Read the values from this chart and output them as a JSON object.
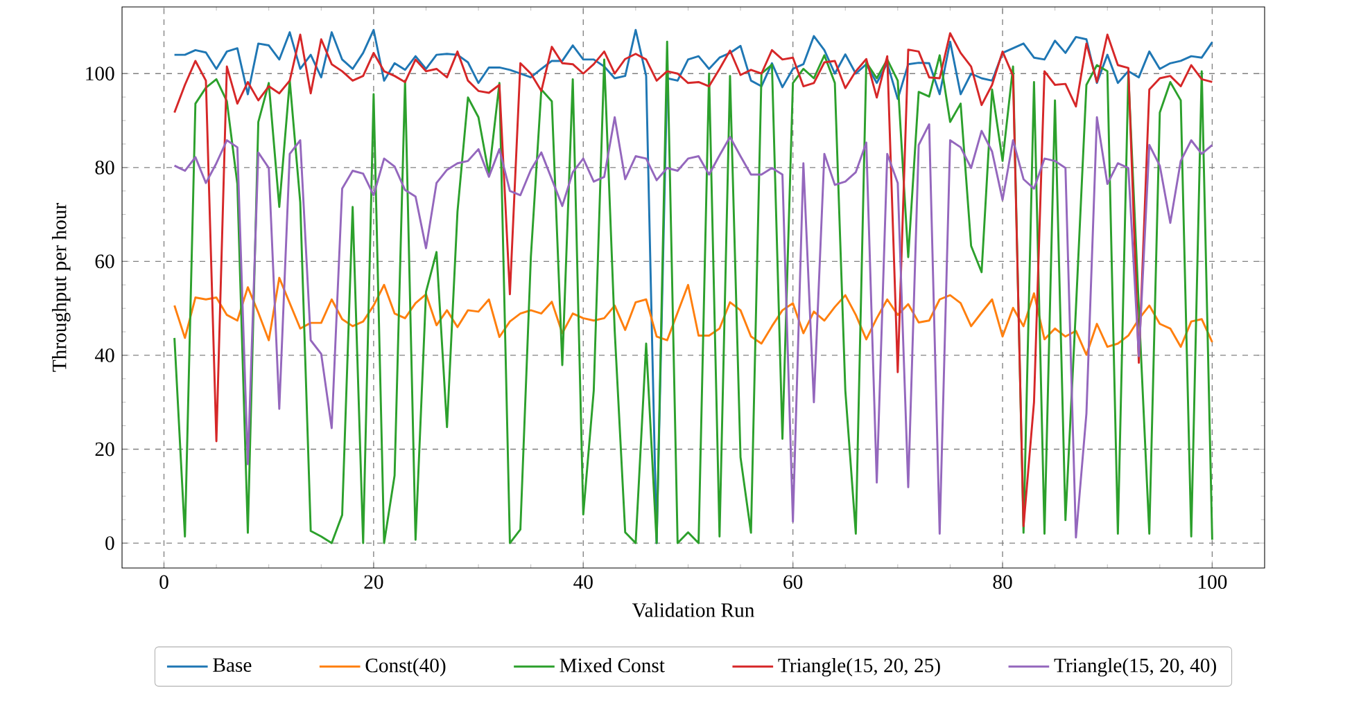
{
  "chart_data": {
    "type": "line",
    "xlabel": "Validation Run",
    "ylabel": "Throughput per hour",
    "x": [
      1,
      2,
      3,
      4,
      5,
      6,
      7,
      8,
      9,
      10,
      11,
      12,
      13,
      14,
      15,
      16,
      17,
      18,
      19,
      20,
      21,
      22,
      23,
      24,
      25,
      26,
      27,
      28,
      29,
      30,
      31,
      32,
      33,
      34,
      35,
      36,
      37,
      38,
      39,
      40,
      41,
      42,
      43,
      44,
      45,
      46,
      47,
      48,
      49,
      50,
      51,
      52,
      53,
      54,
      55,
      56,
      57,
      58,
      59,
      60,
      61,
      62,
      63,
      64,
      65,
      66,
      67,
      68,
      69,
      70,
      71,
      72,
      73,
      74,
      75,
      76,
      77,
      78,
      79,
      80,
      81,
      82,
      83,
      84,
      85,
      86,
      87,
      88,
      89,
      90,
      91,
      92,
      93,
      94,
      95,
      96,
      97,
      98,
      99,
      100
    ],
    "xlim": [
      -4,
      105
    ],
    "ylim": [
      -5.3,
      114.2
    ],
    "xticks": [
      0,
      20,
      40,
      60,
      80,
      100
    ],
    "yticks": [
      0,
      20,
      40,
      60,
      80,
      100
    ],
    "grid": true,
    "legend": "bottom",
    "line_style": "solid",
    "marker": "none",
    "series": [
      {
        "name": "Base",
        "color": "#1f77b4",
        "values": [
          104,
          104,
          105,
          104.5,
          101,
          104.7,
          105.4,
          95.6,
          106.4,
          106,
          103,
          108.8,
          101,
          104,
          99.2,
          108.8,
          103,
          101,
          104.4,
          109.3,
          98.5,
          102.2,
          100.8,
          103.7,
          101,
          104,
          104.2,
          104,
          102.4,
          98,
          101.3,
          101.3,
          100.8,
          100,
          99.2,
          101,
          102.7,
          102.7,
          106,
          103,
          103,
          101.5,
          99,
          99.5,
          109.3,
          99.5,
          0,
          99,
          98.5,
          103,
          103.7,
          101,
          103.4,
          104.4,
          105.9,
          98.5,
          97.3,
          102.2,
          97.1,
          101,
          102,
          108,
          105,
          100,
          104.1,
          100,
          102,
          98,
          102.2,
          94.6,
          102,
          102.3,
          102.2,
          95.6,
          106.8,
          95.6,
          100,
          99,
          98.5,
          104.4,
          105.4,
          106.4,
          103.4,
          103,
          107,
          104.4,
          107.8,
          107.3,
          98,
          104,
          98,
          100.5,
          99.2,
          104.7,
          101,
          102.2,
          102.7,
          103.7,
          103.4,
          106.7
        ]
      },
      {
        "name": "Const(40)",
        "color": "#ff7f0e",
        "values": [
          50.6,
          43.7,
          52.3,
          51.9,
          52.3,
          48.6,
          47.4,
          54.5,
          49.1,
          43.2,
          56.5,
          51.1,
          45.7,
          46.9,
          46.9,
          51.9,
          47.7,
          46.2,
          47.2,
          50.6,
          55,
          48.9,
          47.9,
          51.1,
          53,
          46.4,
          49.6,
          46,
          49.6,
          49.3,
          51.9,
          43.9,
          47.2,
          48.9,
          49.6,
          48.9,
          51.4,
          44.7,
          48.9,
          47.9,
          47.4,
          47.9,
          50.6,
          45.4,
          51.3,
          51.9,
          44,
          43.2,
          49.1,
          55,
          44.2,
          44.2,
          45.7,
          51.3,
          49.6,
          44,
          42.5,
          46.2,
          49.6,
          51.1,
          44.7,
          49.3,
          47.4,
          50.3,
          52.8,
          48.6,
          43.4,
          47.9,
          51.9,
          48.6,
          50.9,
          47,
          47.4,
          51.9,
          52.8,
          51.1,
          46.2,
          49.1,
          51.9,
          44,
          50.1,
          46.2,
          53.2,
          43.4,
          45.7,
          44,
          45.2,
          40.1,
          46.7,
          41.8,
          42.5,
          44.2,
          47.7,
          50.6,
          46.7,
          45.7,
          41.8,
          47.2,
          47.7,
          42.8
        ]
      },
      {
        "name": "Mixed Const",
        "color": "#2ca02c",
        "values": [
          43.7,
          1.4,
          93.6,
          97,
          98.8,
          94.1,
          76.5,
          2.2,
          89.7,
          98,
          71.6,
          98.5,
          72.6,
          2.6,
          1.4,
          0,
          6,
          71.6,
          0,
          95.6,
          0,
          14.4,
          98.5,
          0.7,
          53.5,
          62,
          24.7,
          70.6,
          94.9,
          90.7,
          78.5,
          98,
          0,
          2.9,
          60.9,
          96.6,
          94.1,
          37.9,
          98.8,
          6.1,
          32.5,
          103,
          45.2,
          2.3,
          0,
          42.5,
          0,
          106.8,
          0,
          2.3,
          0,
          100,
          1.4,
          99.5,
          18.3,
          2.2,
          100,
          101.9,
          22.2,
          98,
          101,
          99,
          103.9,
          98,
          32.5,
          2,
          102.4,
          99,
          103,
          98.5,
          60.9,
          96.1,
          95.1,
          103.9,
          89.7,
          93.6,
          63.3,
          57.7,
          96.6,
          81.4,
          101.5,
          2.2,
          98.2,
          2,
          94.3,
          4.9,
          50,
          97.6,
          101.8,
          100.5,
          2,
          100,
          50,
          2,
          91.7,
          98.2,
          94.3,
          1.4,
          100.5,
          0.7
        ]
      },
      {
        "name": "Triangle(15, 20, 25)",
        "color": "#d62728",
        "values": [
          91.7,
          97.6,
          102.7,
          98.5,
          21.7,
          101.5,
          93.6,
          98.2,
          94.3,
          97.3,
          95.8,
          98.5,
          108.3,
          95.8,
          107.3,
          102,
          100.5,
          98.5,
          99.5,
          104.4,
          100.5,
          99.5,
          98.2,
          103,
          100.5,
          101,
          99.2,
          104.7,
          98.5,
          96.3,
          95.9,
          97.6,
          53,
          102.2,
          100,
          96.3,
          105.7,
          102.2,
          102,
          100,
          102,
          104.7,
          100,
          103.1,
          104.2,
          103,
          98.5,
          100.5,
          100,
          98,
          98.2,
          97.3,
          101,
          104.9,
          99.7,
          100.8,
          100,
          105,
          103,
          103.4,
          97.3,
          98,
          102.4,
          102.7,
          96.9,
          100.5,
          103.1,
          94.9,
          103.7,
          36.4,
          105.1,
          104.7,
          99.2,
          99,
          108.6,
          104.4,
          101.5,
          93.3,
          97.6,
          104.7,
          99.5,
          3.6,
          30,
          100.5,
          97.6,
          97.8,
          93,
          106.4,
          98.2,
          108.3,
          101.8,
          101.2,
          38.4,
          96.6,
          99,
          99.5,
          97.3,
          101.8,
          98.8,
          98.2
        ]
      },
      {
        "name": "Triangle(15, 20, 40)",
        "color": "#9467bd",
        "values": [
          80.4,
          79.3,
          82.2,
          76.7,
          80.9,
          85.8,
          84.3,
          16.8,
          83.2,
          79.9,
          28.6,
          82.9,
          85.8,
          43.2,
          40.3,
          24.5,
          75.5,
          79.3,
          78.7,
          74.1,
          81.9,
          80.2,
          75.2,
          73.8,
          62.8,
          76.7,
          79.5,
          80.9,
          81.4,
          83.9,
          78,
          83.9,
          75,
          74.1,
          79.5,
          83.2,
          77.5,
          71.8,
          79,
          81.9,
          77,
          78,
          90.7,
          77.5,
          82.4,
          81.9,
          77.3,
          79.9,
          79.3,
          81.9,
          82.4,
          78.5,
          82.6,
          86.5,
          82.4,
          78.5,
          78.5,
          79.9,
          78.5,
          4.6,
          80.9,
          30,
          82.9,
          76.3,
          77,
          79,
          85.3,
          12.9,
          82.9,
          76.7,
          11.9,
          84.8,
          89.2,
          2,
          85.8,
          84.3,
          79.9,
          87.8,
          83.4,
          73.1,
          85.8,
          77.5,
          75.5,
          81.9,
          81.4,
          79.9,
          1.2,
          27.6,
          90.7,
          76.5,
          80.9,
          79.9,
          39.8,
          84.8,
          80.4,
          68.2,
          81.4,
          85.8,
          82.9,
          84.8
        ]
      }
    ]
  }
}
